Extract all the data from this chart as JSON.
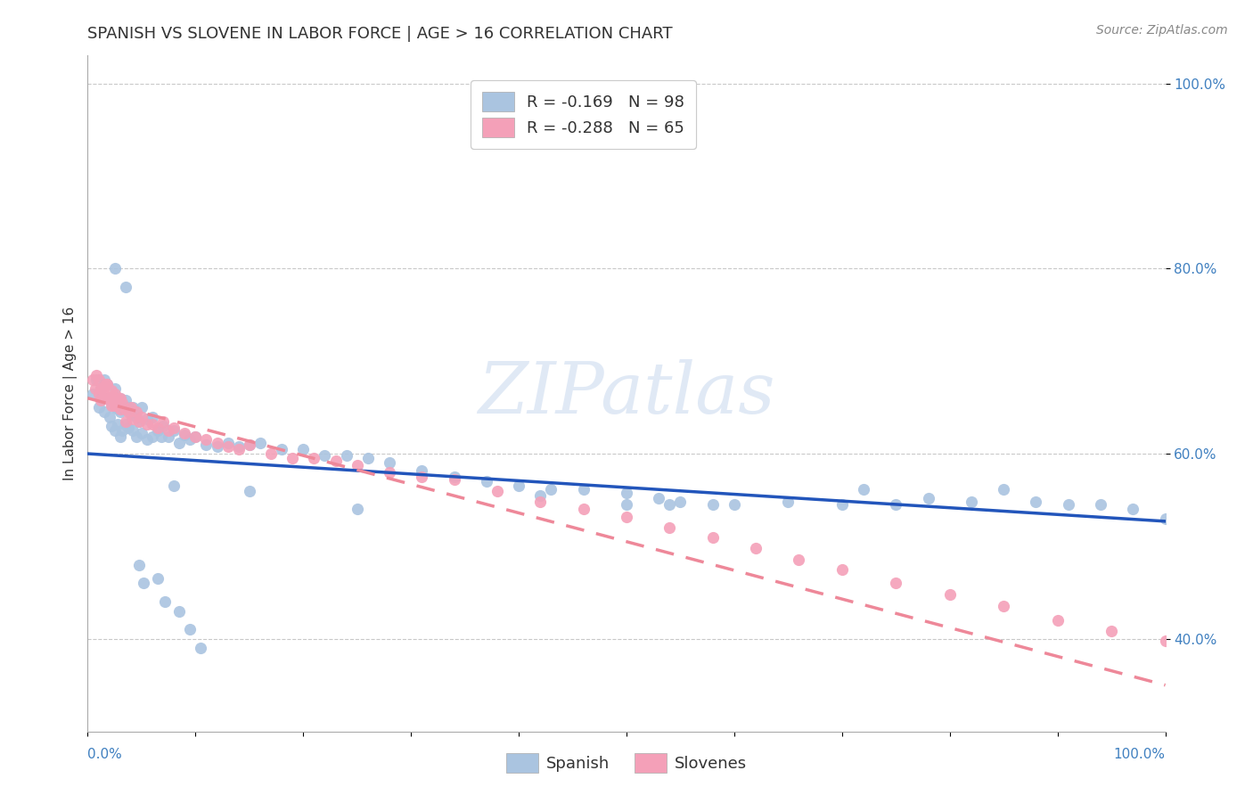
{
  "title": "SPANISH VS SLOVENE IN LABOR FORCE | AGE > 16 CORRELATION CHART",
  "source_text": "Source: ZipAtlas.com",
  "ylabel": "In Labor Force | Age > 16",
  "xlim": [
    0,
    1
  ],
  "ylim": [
    0.3,
    1.03
  ],
  "yticks": [
    0.4,
    0.6,
    0.8,
    1.0
  ],
  "ytick_labels": [
    "40.0%",
    "60.0%",
    "80.0%",
    "100.0%"
  ],
  "xtick_labels": [
    "0.0%",
    "100.0%"
  ],
  "legend_r1": "R = -0.169   N = 98",
  "legend_r2": "R = -0.288   N = 65",
  "spanish_color": "#aac4e0",
  "slovene_color": "#f4a0b8",
  "spanish_line_color": "#2255bb",
  "slovene_line_color": "#ee8899",
  "background_color": "#ffffff",
  "grid_color": "#bbbbbb",
  "watermark": "ZIPatlas",
  "spanish_scatter_x": [
    0.005,
    0.008,
    0.01,
    0.012,
    0.013,
    0.015,
    0.015,
    0.017,
    0.018,
    0.02,
    0.02,
    0.022,
    0.022,
    0.025,
    0.025,
    0.025,
    0.028,
    0.028,
    0.03,
    0.03,
    0.03,
    0.032,
    0.032,
    0.035,
    0.035,
    0.038,
    0.038,
    0.04,
    0.042,
    0.042,
    0.045,
    0.045,
    0.048,
    0.05,
    0.05,
    0.055,
    0.055,
    0.06,
    0.06,
    0.065,
    0.068,
    0.07,
    0.075,
    0.08,
    0.085,
    0.09,
    0.095,
    0.1,
    0.11,
    0.12,
    0.13,
    0.14,
    0.15,
    0.16,
    0.18,
    0.2,
    0.22,
    0.24,
    0.26,
    0.28,
    0.31,
    0.34,
    0.37,
    0.4,
    0.43,
    0.46,
    0.5,
    0.53,
    0.55,
    0.58,
    0.6,
    0.65,
    0.7,
    0.72,
    0.75,
    0.78,
    0.82,
    0.85,
    0.88,
    0.91,
    0.94,
    0.97,
    1.0,
    0.5,
    0.54,
    0.42,
    0.25,
    0.15,
    0.08,
    0.035,
    0.025,
    0.048,
    0.052,
    0.065,
    0.072,
    0.085,
    0.095,
    0.105
  ],
  "spanish_scatter_y": [
    0.665,
    0.68,
    0.65,
    0.67,
    0.66,
    0.68,
    0.645,
    0.66,
    0.675,
    0.66,
    0.64,
    0.655,
    0.63,
    0.67,
    0.65,
    0.625,
    0.648,
    0.632,
    0.66,
    0.645,
    0.618,
    0.648,
    0.625,
    0.658,
    0.632,
    0.65,
    0.628,
    0.642,
    0.65,
    0.625,
    0.64,
    0.618,
    0.635,
    0.65,
    0.622,
    0.638,
    0.615,
    0.64,
    0.618,
    0.625,
    0.618,
    0.63,
    0.618,
    0.625,
    0.612,
    0.62,
    0.615,
    0.618,
    0.61,
    0.608,
    0.612,
    0.608,
    0.61,
    0.612,
    0.605,
    0.605,
    0.598,
    0.598,
    0.595,
    0.59,
    0.582,
    0.575,
    0.57,
    0.565,
    0.562,
    0.562,
    0.558,
    0.552,
    0.548,
    0.545,
    0.545,
    0.548,
    0.545,
    0.562,
    0.545,
    0.552,
    0.548,
    0.562,
    0.548,
    0.545,
    0.545,
    0.54,
    0.53,
    0.545,
    0.545,
    0.555,
    0.54,
    0.56,
    0.565,
    0.78,
    0.8,
    0.48,
    0.46,
    0.465,
    0.44,
    0.43,
    0.41,
    0.39
  ],
  "slovene_scatter_x": [
    0.005,
    0.007,
    0.008,
    0.01,
    0.01,
    0.012,
    0.012,
    0.015,
    0.015,
    0.017,
    0.018,
    0.018,
    0.02,
    0.022,
    0.022,
    0.025,
    0.025,
    0.028,
    0.03,
    0.03,
    0.032,
    0.035,
    0.035,
    0.038,
    0.04,
    0.042,
    0.045,
    0.048,
    0.05,
    0.055,
    0.06,
    0.065,
    0.07,
    0.075,
    0.08,
    0.09,
    0.1,
    0.11,
    0.12,
    0.13,
    0.14,
    0.15,
    0.17,
    0.19,
    0.21,
    0.23,
    0.25,
    0.28,
    0.31,
    0.34,
    0.38,
    0.42,
    0.46,
    0.5,
    0.54,
    0.58,
    0.62,
    0.66,
    0.7,
    0.75,
    0.8,
    0.85,
    0.9,
    0.95,
    1.0
  ],
  "slovene_scatter_y": [
    0.68,
    0.67,
    0.685,
    0.665,
    0.68,
    0.67,
    0.658,
    0.672,
    0.66,
    0.675,
    0.662,
    0.675,
    0.66,
    0.668,
    0.652,
    0.665,
    0.652,
    0.66,
    0.66,
    0.648,
    0.655,
    0.648,
    0.635,
    0.645,
    0.65,
    0.638,
    0.645,
    0.635,
    0.64,
    0.632,
    0.632,
    0.628,
    0.635,
    0.625,
    0.628,
    0.622,
    0.618,
    0.615,
    0.612,
    0.608,
    0.605,
    0.61,
    0.6,
    0.595,
    0.595,
    0.592,
    0.588,
    0.58,
    0.575,
    0.572,
    0.56,
    0.548,
    0.54,
    0.532,
    0.52,
    0.51,
    0.498,
    0.485,
    0.475,
    0.46,
    0.448,
    0.435,
    0.42,
    0.408,
    0.398
  ],
  "spanish_line_x0": 0.0,
  "spanish_line_y0": 0.6,
  "spanish_line_x1": 1.0,
  "spanish_line_y1": 0.527,
  "slovene_line_x0": 0.0,
  "slovene_line_y0": 0.66,
  "slovene_line_x1": 1.0,
  "slovene_line_y1": 0.35,
  "title_fontsize": 13,
  "axis_fontsize": 11,
  "tick_fontsize": 11,
  "legend_fontsize": 13,
  "source_fontsize": 10,
  "marker_size": 90,
  "line_width": 2.5
}
